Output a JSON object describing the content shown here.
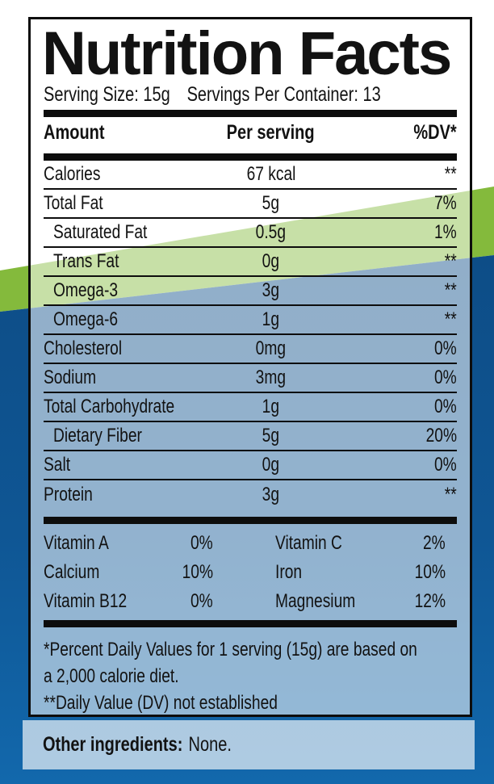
{
  "colors": {
    "green": "#84ba3c",
    "blue-dark": "#0d4d87",
    "blue-light": "#1268ac",
    "ink": "#0d0d0d"
  },
  "header": {
    "title": "Nutrition Facts",
    "serving_size": "Serving Size: 15g",
    "servings_per_container": "Servings Per Container: 13"
  },
  "table": {
    "columns": {
      "amount": "Amount",
      "per_serving": "Per serving",
      "dv": "%DV*"
    },
    "rows": [
      {
        "name": "Calories",
        "value": "67 kcal",
        "dv": "**"
      },
      {
        "name": "Total Fat",
        "value": "5g",
        "dv": "7%"
      },
      {
        "name": "Saturated Fat",
        "value": "0.5g",
        "dv": "1%"
      },
      {
        "name": "Trans Fat",
        "value": "0g",
        "dv": "**"
      },
      {
        "name": "Omega-3",
        "value": "3g",
        "dv": "**"
      },
      {
        "name": "Omega-6",
        "value": "1g",
        "dv": "**"
      },
      {
        "name": "Cholesterol",
        "value": "0mg",
        "dv": "0%"
      },
      {
        "name": "Sodium",
        "value": "3mg",
        "dv": "0%"
      },
      {
        "name": "Total Carbohydrate",
        "value": "1g",
        "dv": "0%"
      },
      {
        "name": "Dietary Fiber",
        "value": "5g",
        "dv": "20%"
      },
      {
        "name": "Salt",
        "value": "0g",
        "dv": "0%"
      },
      {
        "name": "Protein",
        "value": "3g",
        "dv": "**"
      }
    ]
  },
  "micronutrients": {
    "rows": [
      {
        "name1": "Vitamin A",
        "value1": "0%",
        "name2": "Vitamin C",
        "value2": "2%"
      },
      {
        "name1": "Calcium",
        "value1": "10%",
        "name2": "Iron",
        "value2": "10%"
      },
      {
        "name1": "Vitamin B12",
        "value1": "0%",
        "name2": "Magnesium",
        "value2": "12%"
      }
    ]
  },
  "footnotes": {
    "lines": [
      "*Percent Daily Values for 1 serving (15g) are based on",
      "a 2,000 calorie diet.",
      "**Daily Value (DV) not established"
    ]
  },
  "other_ingredients": {
    "label": "Other ingredients:",
    "value": "None."
  }
}
